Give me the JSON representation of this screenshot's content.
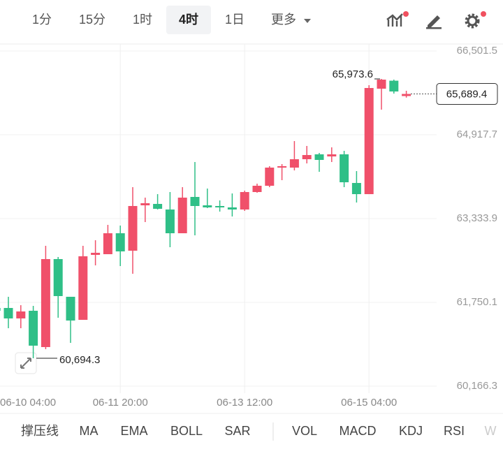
{
  "tabs": [
    "1分",
    "15分",
    "1时",
    "4时",
    "1日",
    "更多"
  ],
  "selected_tab": "4时",
  "indicators": [
    "撑压线",
    "MA",
    "EMA",
    "BOLL",
    "SAR",
    "VOL",
    "MACD",
    "KDJ",
    "RSI",
    "W"
  ],
  "chart_data": {
    "type": "candlestick",
    "categories": [
      "06-10 04:00",
      null,
      null,
      null,
      null,
      null,
      null,
      null,
      null,
      null,
      "06-11 20:00",
      null,
      null,
      null,
      null,
      null,
      null,
      null,
      null,
      null,
      "06-13 12:00",
      null,
      null,
      null,
      null,
      null,
      null,
      null,
      null,
      null,
      "06-15 04:00",
      null,
      null,
      null
    ],
    "open": [
      61644.6,
      61644.6,
      61446.7,
      61591.8,
      60905.6,
      62568.5,
      61855.8,
      61420.3,
      62647.7,
      62660.9,
      63056.8,
      62726.9,
      63584.7,
      63611.1,
      63505.5,
      63056.8,
      63743.1,
      63584.7,
      63571.5,
      63545.1,
      63505.5,
      63835.5,
      63954.3,
      64297.4,
      64297.4,
      64455.8,
      64548.2,
      64508.6,
      64548.2,
      64007.1,
      63795.9,
      65788.8,
      65940.0,
      65650.0
    ],
    "high": [
      62053.8,
      61855.8,
      61697.4,
      61684.2,
      62819.2,
      62608.1,
      61855.8,
      62819.2,
      62924.9,
      63215.1,
      63201.9,
      63927.9,
      63729.9,
      63795.9,
      63835.5,
      63927.9,
      64403.0,
      63901.5,
      63677.1,
      63809.1,
      63861.9,
      63993.9,
      64323.8,
      64363.4,
      64798.9,
      64706.5,
      64574.6,
      64680.1,
      64614.1,
      64231.4,
      65854.8,
      65973.6,
      65960.0,
      65749.2
    ],
    "low": [
      61459.9,
      61261.9,
      61261.9,
      60694.3,
      60866.0,
      61459.9,
      60984.8,
      61420.3,
      62449.7,
      62660.9,
      62436.5,
      62291.3,
      63267.8,
      63505.5,
      62792.8,
      63056.8,
      63017.2,
      63531.9,
      63465.8,
      63373.4,
      63479.0,
      63822.3,
      63927.9,
      64059.8,
      64244.6,
      64376.6,
      64218.2,
      64403.0,
      63927.9,
      63637.5,
      63795.9,
      65392.9,
      65696.4,
      65620.0
    ],
    "close": [
      61591.8,
      61446.7,
      61578.7,
      60932.0,
      62568.5,
      61869.0,
      61407.1,
      62621.3,
      62687.3,
      63056.8,
      62713.7,
      63571.5,
      63624.3,
      63518.7,
      63056.8,
      63729.9,
      63571.5,
      63545.1,
      63545.1,
      63505.5,
      63835.5,
      63954.3,
      64297.4,
      64323.8,
      64455.8,
      64535.0,
      64442.6,
      64548.2,
      64020.3,
      63795.9,
      65802.0,
      65960.0,
      65736.0,
      65689.4
    ],
    "up_color": "#f0506a",
    "down_color": "#2fbf87",
    "ylim": [
      60034.3,
      66633.5
    ],
    "yticks": [
      {
        "value": 66501.5,
        "label": "66,501.5"
      },
      {
        "value": 64917.7,
        "label": "64,917.7"
      },
      {
        "value": 63333.9,
        "label": "63,333.9"
      },
      {
        "value": 61750.1,
        "label": "61,750.1"
      },
      {
        "value": 60166.3,
        "label": "60,166.3"
      }
    ],
    "grid": true,
    "high_marker": {
      "value": 65973.6,
      "label": "65,973.6"
    },
    "low_marker": {
      "value": 60694.3,
      "label": "60,694.3"
    },
    "last_price": {
      "value": 65689.4,
      "label": "65,689.4"
    }
  }
}
